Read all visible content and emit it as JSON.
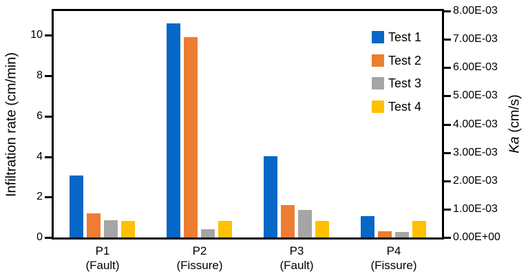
{
  "chart_data": {
    "type": "bar",
    "title": "",
    "categories": [
      {
        "top": "P1",
        "bottom": "(Fault)"
      },
      {
        "top": "P2",
        "bottom": "(Fissure)"
      },
      {
        "top": "P3",
        "bottom": "(Fault)"
      },
      {
        "top": "P4",
        "bottom": "(Fissure)"
      }
    ],
    "series": [
      {
        "name": "Test 1",
        "color": "#0667C6",
        "values": [
          3.05,
          10.6,
          4.0,
          1.05
        ]
      },
      {
        "name": "Test 2",
        "color": "#ED7D31",
        "values": [
          1.2,
          9.9,
          1.6,
          0.3
        ]
      },
      {
        "name": "Test 3",
        "color": "#A5A5A5",
        "values": [
          0.85,
          0.4,
          1.35,
          0.28
        ]
      },
      {
        "name": "Test 4",
        "color": "#FFC000",
        "values": [
          0.8,
          0.8,
          0.8,
          0.8
        ]
      }
    ],
    "left_axis": {
      "label": "Infiltration rate (cm/min)",
      "ticks": [
        0,
        2,
        4,
        6,
        8,
        10
      ],
      "ylim": [
        0,
        11.2
      ]
    },
    "right_axis": {
      "symbol": "Ka",
      "unit": " (cm/s)",
      "tick_labels": [
        "0.00E+00",
        "1.00E-03",
        "2.00E-03",
        "3.00E-03",
        "4.00E-03",
        "5.00E-03",
        "6.00E-03",
        "7.00E-03",
        "8.00E-03"
      ],
      "ylim": [
        0,
        0.008
      ]
    },
    "legend": {
      "position": "inside-top-right",
      "entries": [
        "Test 1",
        "Test 2",
        "Test 3",
        "Test 4"
      ]
    },
    "grid": false,
    "frame": true,
    "colors": {
      "axis": "#000000",
      "background": "#ffffff",
      "text": "#000000"
    }
  }
}
